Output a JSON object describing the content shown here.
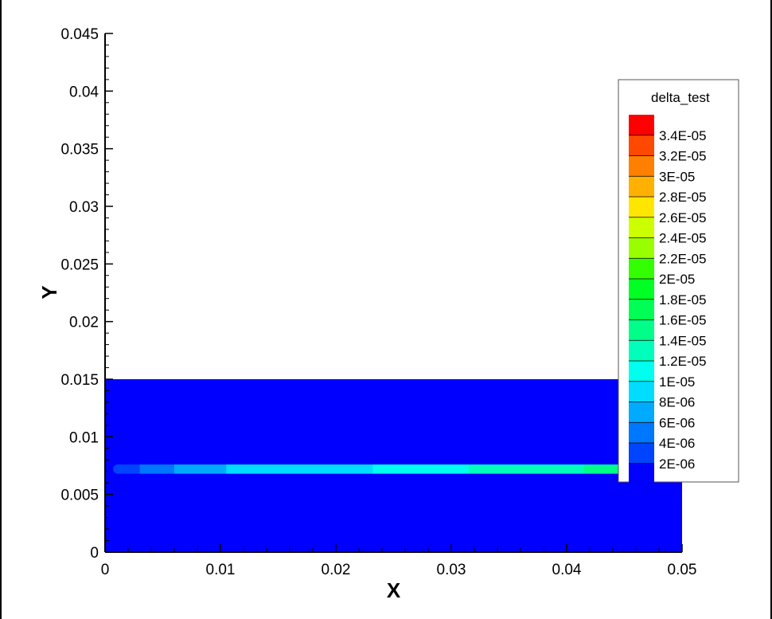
{
  "chart_data": {
    "type": "heatmap",
    "xlabel": "X",
    "ylabel": "Y",
    "xlim": [
      0,
      0.05
    ],
    "ylim": [
      0,
      0.045
    ],
    "x_ticks": [
      "0",
      "0.01",
      "0.02",
      "0.03",
      "0.04",
      "0.05"
    ],
    "y_ticks": [
      "0",
      "0.005",
      "0.01",
      "0.015",
      "0.02",
      "0.025",
      "0.03",
      "0.035",
      "0.04",
      "0.045"
    ],
    "domain": {
      "x": [
        0,
        0.05
      ],
      "y": [
        0,
        0.015
      ]
    },
    "background_level": "2E-06",
    "band": {
      "y_center": 0.0072,
      "y_half_width": 0.0004,
      "x_start": 0.0007,
      "segments": [
        {
          "x_from": 0.0007,
          "x_to": 0.003,
          "level": "4E-06"
        },
        {
          "x_from": 0.003,
          "x_to": 0.006,
          "level": "6E-06"
        },
        {
          "x_from": 0.006,
          "x_to": 0.0105,
          "level": "8E-06"
        },
        {
          "x_from": 0.0105,
          "x_to": 0.0232,
          "level": "1E-05"
        },
        {
          "x_from": 0.0232,
          "x_to": 0.0315,
          "level": "1.2E-05"
        },
        {
          "x_from": 0.0315,
          "x_to": 0.0415,
          "level": "1.4E-05"
        },
        {
          "x_from": 0.0415,
          "x_to": 0.05,
          "level": "1.6E-05"
        }
      ]
    },
    "legend": {
      "title": "delta_test",
      "placement": "right",
      "levels": [
        "3.4E-05",
        "3.2E-05",
        "3E-05",
        "2.8E-05",
        "2.6E-05",
        "2.4E-05",
        "2.2E-05",
        "2E-05",
        "1.8E-05",
        "1.6E-05",
        "1.4E-05",
        "1.2E-05",
        "1E-05",
        "8E-06",
        "6E-06",
        "4E-06",
        "2E-06"
      ],
      "colors": [
        "#ff0000",
        "#ff4800",
        "#ff7f00",
        "#ffb000",
        "#ffe600",
        "#ccff00",
        "#99ff00",
        "#33ff00",
        "#00ff22",
        "#00ff55",
        "#00ff88",
        "#00ffbb",
        "#00ffee",
        "#00ddff",
        "#00aaff",
        "#0077ff",
        "#0044ff",
        "#0000ff"
      ]
    }
  }
}
